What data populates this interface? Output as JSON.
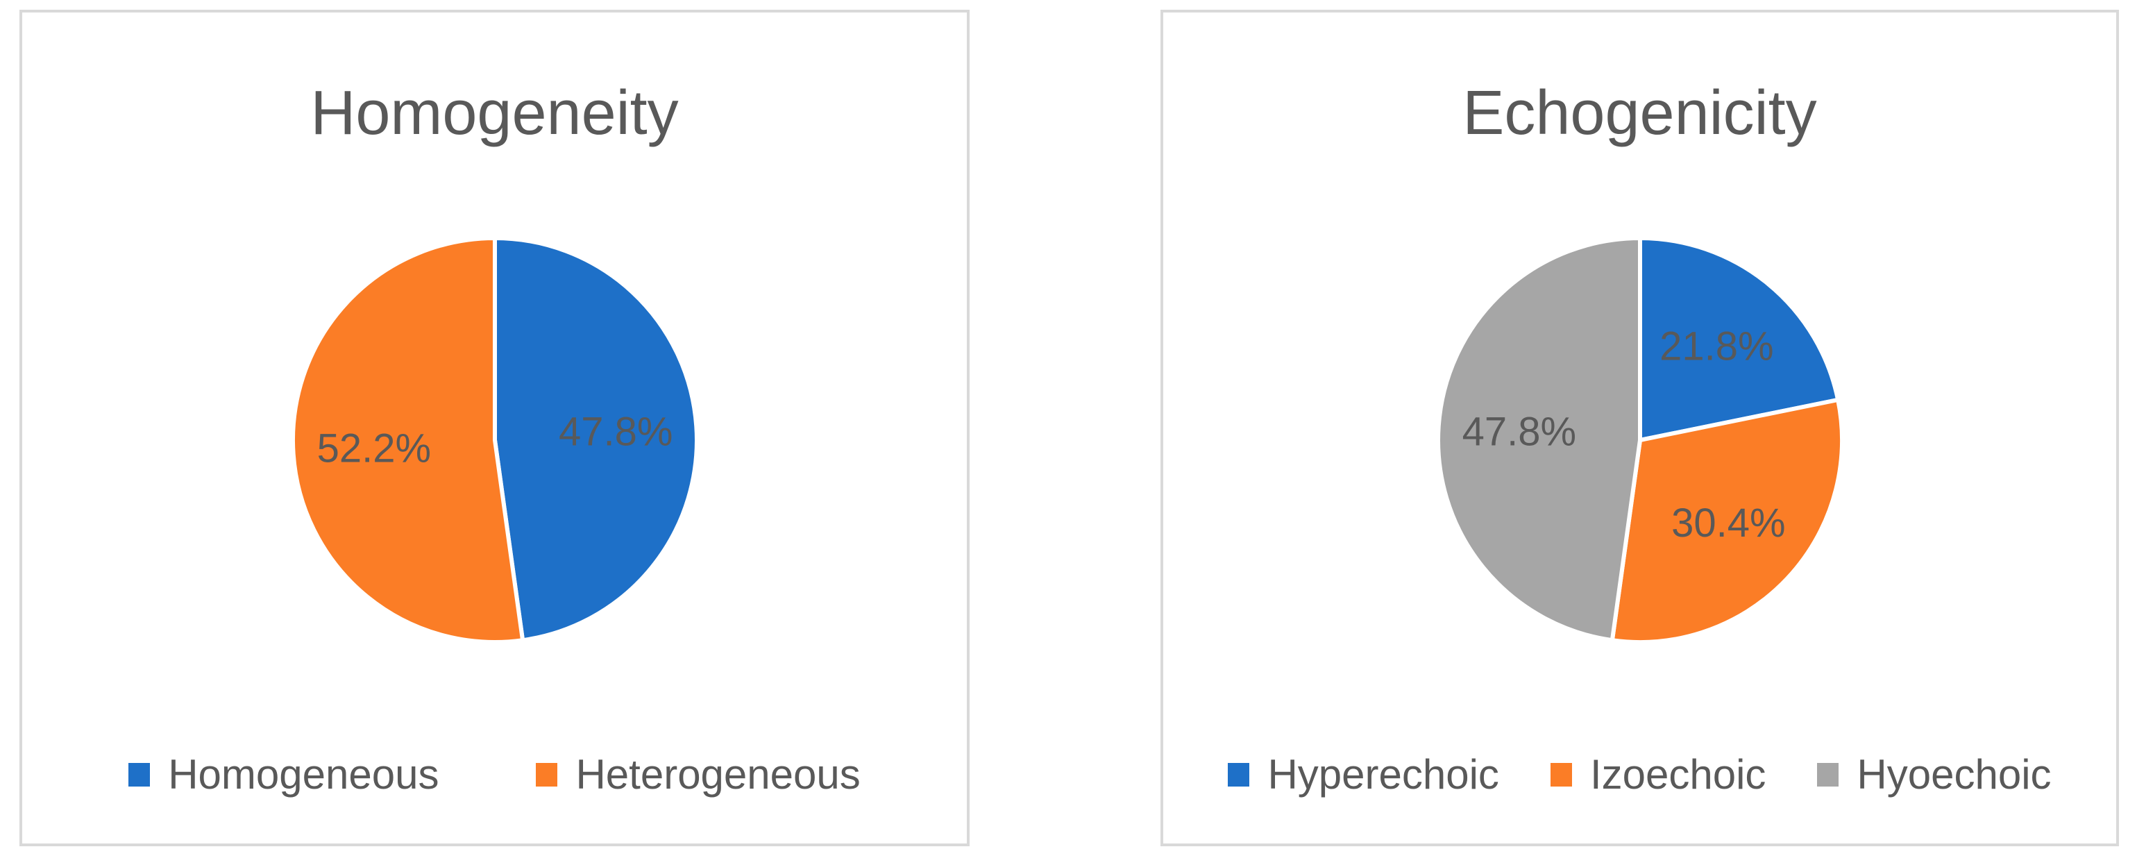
{
  "figure": {
    "background_color": "#FFFFFF",
    "panel_border_color": "#D9D9D9",
    "text_color": "#595959",
    "slice_separator_color": "#FFFFFF"
  },
  "chart_data": [
    {
      "type": "pie",
      "title": "Homogeneity",
      "start_angle_deg": 0,
      "direction": "clockwise",
      "legend_position": "bottom",
      "data_labels": "percent",
      "slices": [
        {
          "label": "Homogeneous",
          "value": 47.8,
          "display": "47.8%",
          "color": "#1E70C8"
        },
        {
          "label": "Heterogeneous",
          "value": 52.2,
          "display": "52.2%",
          "color": "#FB7D26"
        }
      ]
    },
    {
      "type": "pie",
      "title": "Echogenicity",
      "start_angle_deg": 0,
      "direction": "clockwise",
      "legend_position": "bottom",
      "data_labels": "percent",
      "slices": [
        {
          "label": "Hyperechoic",
          "value": 21.8,
          "display": "21.8%",
          "color": "#1E70C8"
        },
        {
          "label": "Izoechoic",
          "value": 30.4,
          "display": "30.4%",
          "color": "#FB7D26"
        },
        {
          "label": "Hyoechoic",
          "value": 47.8,
          "display": "47.8%",
          "color": "#A6A6A6"
        }
      ]
    }
  ]
}
